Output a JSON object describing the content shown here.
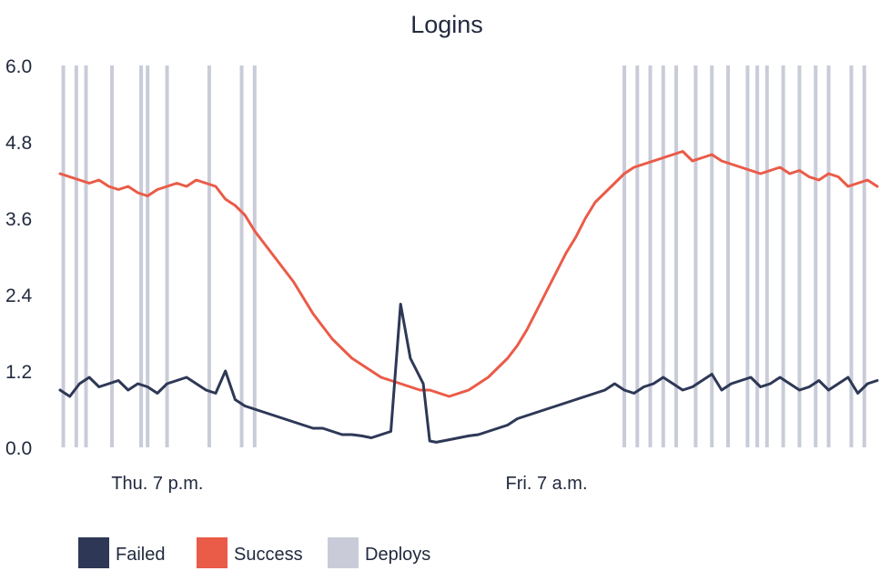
{
  "chart_data": {
    "type": "line",
    "title": "Logins",
    "xlabel": "",
    "ylabel": "",
    "ylim": [
      0,
      6
    ],
    "yticks": [
      "0.0",
      "1.2",
      "2.4",
      "3.6",
      "4.8",
      "6.0"
    ],
    "xticks": [
      {
        "label": "Thu. 7 p.m.",
        "x": 3
      },
      {
        "label": "Fri. 7 a.m.",
        "x": 15
      }
    ],
    "xlim": [
      0,
      25.2
    ],
    "grid": false,
    "legend_position": "bottom-left",
    "series": [
      {
        "name": "Failed",
        "color": "#2e3856",
        "x": [
          0,
          0.3,
          0.6,
          0.9,
          1.2,
          1.5,
          1.8,
          2.1,
          2.4,
          2.7,
          3.0,
          3.3,
          3.6,
          3.9,
          4.2,
          4.5,
          4.8,
          5.1,
          5.4,
          5.7,
          6.0,
          6.3,
          6.6,
          6.9,
          7.2,
          7.5,
          7.8,
          8.1,
          8.4,
          8.7,
          9.0,
          9.3,
          9.6,
          9.9,
          10.2,
          10.5,
          10.8,
          11.0,
          11.2,
          11.4,
          11.6,
          11.8,
          12.0,
          12.3,
          12.6,
          12.9,
          13.2,
          13.5,
          13.8,
          14.1,
          14.4,
          14.7,
          15.0,
          15.3,
          15.6,
          15.9,
          16.2,
          16.5,
          16.8,
          17.1,
          17.4,
          17.7,
          18.0,
          18.3,
          18.6,
          18.9,
          19.2,
          19.5,
          19.8,
          20.1,
          20.4,
          20.7,
          21.0,
          21.3,
          21.6,
          21.9,
          22.2,
          22.5,
          22.8,
          23.1,
          23.4,
          23.7,
          24.0,
          24.3,
          24.6,
          24.9,
          25.2
        ],
        "values": [
          0.9,
          0.8,
          1.0,
          1.1,
          0.95,
          1.0,
          1.05,
          0.9,
          1.0,
          0.95,
          0.85,
          1.0,
          1.05,
          1.1,
          1.0,
          0.9,
          0.85,
          1.2,
          0.75,
          0.65,
          0.6,
          0.55,
          0.5,
          0.45,
          0.4,
          0.35,
          0.3,
          0.3,
          0.25,
          0.2,
          0.2,
          0.18,
          0.15,
          0.2,
          0.25,
          2.25,
          1.4,
          1.2,
          1.0,
          0.1,
          0.08,
          0.1,
          0.12,
          0.15,
          0.18,
          0.2,
          0.25,
          0.3,
          0.35,
          0.45,
          0.5,
          0.55,
          0.6,
          0.65,
          0.7,
          0.75,
          0.8,
          0.85,
          0.9,
          1.0,
          0.9,
          0.85,
          0.95,
          1.0,
          1.1,
          1.0,
          0.9,
          0.95,
          1.05,
          1.15,
          0.9,
          1.0,
          1.05,
          1.1,
          0.95,
          1.0,
          1.1,
          1.0,
          0.9,
          0.95,
          1.05,
          0.9,
          1.0,
          1.1,
          0.85,
          1.0,
          1.05
        ]
      },
      {
        "name": "Success",
        "color": "#ea5b48",
        "x": [
          0,
          0.3,
          0.6,
          0.9,
          1.2,
          1.5,
          1.8,
          2.1,
          2.4,
          2.7,
          3.0,
          3.3,
          3.6,
          3.9,
          4.2,
          4.5,
          4.8,
          5.1,
          5.4,
          5.7,
          6.0,
          6.3,
          6.6,
          6.9,
          7.2,
          7.5,
          7.8,
          8.1,
          8.4,
          8.7,
          9.0,
          9.3,
          9.6,
          9.9,
          10.2,
          10.5,
          10.8,
          11.1,
          11.4,
          11.7,
          12.0,
          12.3,
          12.6,
          12.9,
          13.2,
          13.5,
          13.8,
          14.1,
          14.4,
          14.7,
          15.0,
          15.3,
          15.6,
          15.9,
          16.2,
          16.5,
          16.8,
          17.1,
          17.4,
          17.7,
          18.0,
          18.3,
          18.6,
          18.9,
          19.2,
          19.5,
          19.8,
          20.1,
          20.4,
          20.7,
          21.0,
          21.3,
          21.6,
          21.9,
          22.2,
          22.5,
          22.8,
          23.1,
          23.4,
          23.7,
          24.0,
          24.3,
          24.6,
          24.9,
          25.2
        ],
        "values": [
          4.3,
          4.25,
          4.2,
          4.15,
          4.2,
          4.1,
          4.05,
          4.1,
          4.0,
          3.95,
          4.05,
          4.1,
          4.15,
          4.1,
          4.2,
          4.15,
          4.1,
          3.9,
          3.8,
          3.65,
          3.4,
          3.2,
          3.0,
          2.8,
          2.6,
          2.35,
          2.1,
          1.9,
          1.7,
          1.55,
          1.4,
          1.3,
          1.2,
          1.1,
          1.05,
          1.0,
          0.95,
          0.9,
          0.9,
          0.85,
          0.8,
          0.85,
          0.9,
          1.0,
          1.1,
          1.25,
          1.4,
          1.6,
          1.85,
          2.15,
          2.45,
          2.75,
          3.05,
          3.3,
          3.6,
          3.85,
          4.0,
          4.15,
          4.3,
          4.4,
          4.45,
          4.5,
          4.55,
          4.6,
          4.65,
          4.5,
          4.55,
          4.6,
          4.5,
          4.45,
          4.4,
          4.35,
          4.3,
          4.35,
          4.4,
          4.3,
          4.35,
          4.25,
          4.2,
          4.3,
          4.25,
          4.1,
          4.15,
          4.2,
          4.1
        ]
      },
      {
        "name": "Deploys",
        "color": "#c9ccd8",
        "type": "vline",
        "x": [
          0.1,
          0.5,
          0.8,
          1.6,
          2.5,
          2.7,
          3.3,
          4.6,
          5.6,
          6.0,
          17.4,
          17.8,
          18.2,
          18.6,
          19.0,
          19.6,
          20.1,
          20.6,
          21.2,
          21.5,
          21.8,
          22.3,
          22.8,
          23.3,
          23.7,
          24.4,
          24.8
        ]
      }
    ],
    "legend": [
      "Failed",
      "Success",
      "Deploys"
    ]
  }
}
